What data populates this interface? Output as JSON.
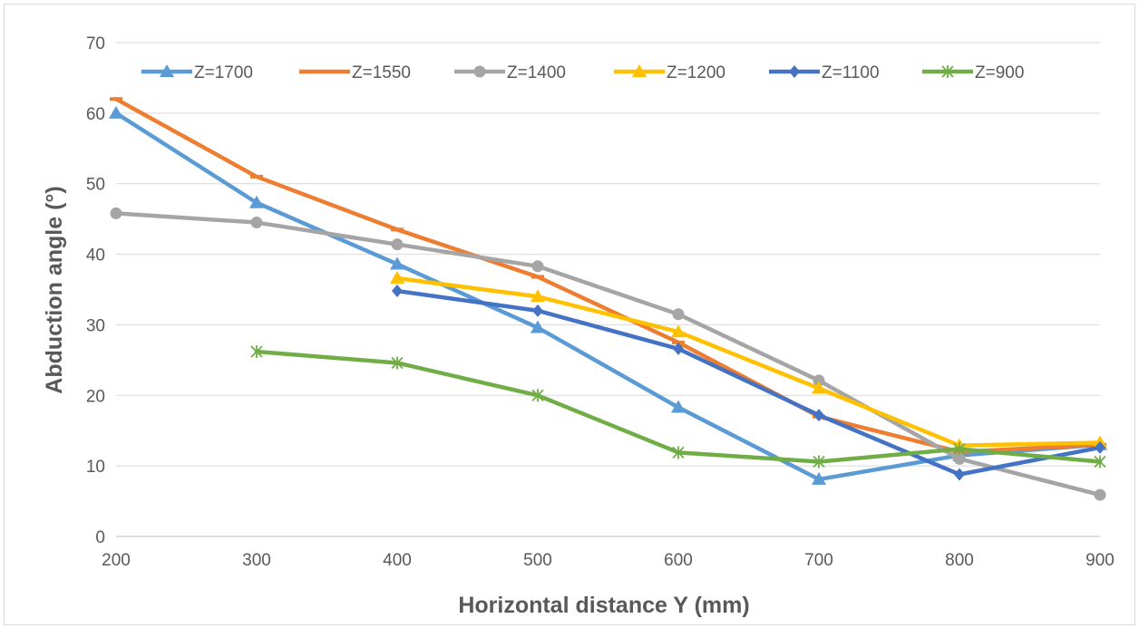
{
  "chart_data": {
    "type": "line",
    "xlabel": "Horizontal distance Y (mm)",
    "ylabel": "Abduction angle (°)",
    "xlim": [
      200,
      900
    ],
    "ylim": [
      0,
      70
    ],
    "x_ticks": [
      "200",
      "300",
      "400",
      "500",
      "600",
      "700",
      "800",
      "900"
    ],
    "y_ticks": [
      "0",
      "10",
      "20",
      "30",
      "40",
      "50",
      "60",
      "70"
    ],
    "grid": "horizontal",
    "legend": "top",
    "series": [
      {
        "name": "Z=1700",
        "color": "#5b9bd5",
        "marker": "triangle",
        "x": [
          200,
          300,
          400,
          500,
          600,
          700,
          800,
          900
        ],
        "values": [
          60,
          47.3,
          38.6,
          29.6,
          18.3,
          8.1,
          11.5,
          13
        ]
      },
      {
        "name": "Z=1550",
        "color": "#ed7d31",
        "marker": "dash",
        "x": [
          200,
          300,
          400,
          500,
          600,
          700,
          800,
          900
        ],
        "values": [
          62,
          51,
          43.5,
          36.8,
          27.5,
          17,
          12,
          13
        ]
      },
      {
        "name": "Z=1400",
        "color": "#a5a5a5",
        "marker": "circle",
        "x": [
          200,
          300,
          400,
          500,
          600,
          700,
          800,
          900
        ],
        "values": [
          45.8,
          44.5,
          41.4,
          38.3,
          31.5,
          22.1,
          11,
          5.9
        ]
      },
      {
        "name": "Z=1200",
        "color": "#ffc000",
        "marker": "triangle",
        "x": [
          400,
          500,
          600,
          700,
          800,
          900
        ],
        "values": [
          36.6,
          34,
          29,
          21,
          12.9,
          13.3
        ]
      },
      {
        "name": "Z=1100",
        "color": "#4472c4",
        "marker": "diamond",
        "x": [
          400,
          500,
          600,
          700,
          800,
          900
        ],
        "values": [
          34.8,
          32,
          26.6,
          17.2,
          8.8,
          12.6
        ]
      },
      {
        "name": "Z=900",
        "color": "#70ad47",
        "marker": "star",
        "x": [
          300,
          400,
          500,
          600,
          700,
          800,
          900
        ],
        "values": [
          26.2,
          24.6,
          20,
          11.9,
          10.6,
          12.4,
          10.6
        ]
      }
    ]
  }
}
